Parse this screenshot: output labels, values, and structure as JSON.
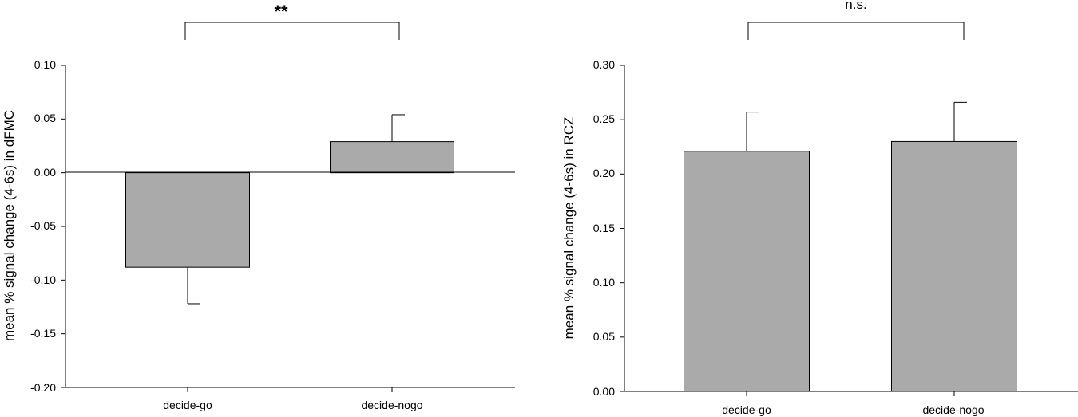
{
  "chart_data": [
    {
      "type": "bar",
      "categories": [
        "decide-go",
        "decide-nogo"
      ],
      "values": [
        -0.088,
        0.029
      ],
      "errors": [
        0.034,
        0.025
      ],
      "ylabel": "mean % signal change (4-6s) in dFMC",
      "ylim": [
        -0.2,
        0.1
      ],
      "yticks": [
        "0.10",
        "0.05",
        "0.00",
        "-0.05",
        "-0.10",
        "-0.15",
        "-0.20"
      ],
      "annotation": "**",
      "grid": false,
      "bar_color": "#aaaaaa"
    },
    {
      "type": "bar",
      "categories": [
        "decide-go",
        "decide-nogo"
      ],
      "values": [
        0.221,
        0.23
      ],
      "errors": [
        0.036,
        0.036
      ],
      "ylabel": "mean % signal change (4-6s) in RCZ",
      "ylim": [
        0.0,
        0.3
      ],
      "yticks": [
        "0.30",
        "0.25",
        "0.20",
        "0.15",
        "0.10",
        "0.05",
        "0.00"
      ],
      "annotation": "n.s.",
      "grid": false,
      "bar_color": "#aaaaaa"
    }
  ]
}
